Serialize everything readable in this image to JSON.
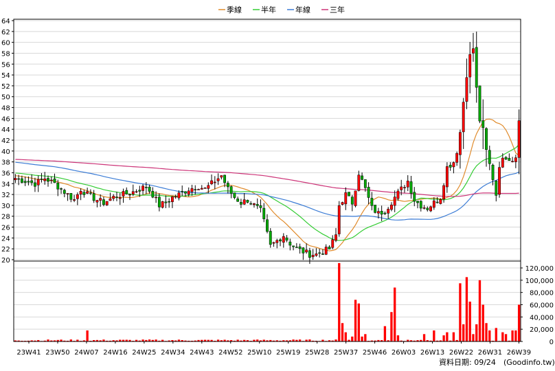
{
  "chart_data": {
    "type": "candlestick",
    "legend": [
      {
        "name": "季線",
        "color": "#e08a2a"
      },
      {
        "name": "半年",
        "color": "#33cc33"
      },
      {
        "name": "年線",
        "color": "#3a7bd5"
      },
      {
        "name": "三年",
        "color": "#cc3377"
      }
    ],
    "colors": {
      "up": "#ff0000",
      "down": "#00aa00",
      "grid": "#d8d8d8",
      "frame": "#000000"
    },
    "price_axis": {
      "min": 20,
      "max": 64,
      "step": 2,
      "ticks": [
        "20",
        "22",
        "24",
        "26",
        "28",
        "30",
        "32",
        "34",
        "36",
        "38",
        "40",
        "42",
        "44",
        "46",
        "48",
        "50",
        "52",
        "54",
        "56",
        "58",
        "60",
        "62",
        "64"
      ]
    },
    "volume_axis": {
      "min": 0,
      "max": 120000,
      "ticks": [
        "0",
        "20,000",
        "40,000",
        "60,000",
        "80,000",
        "100,000",
        "120,000"
      ]
    },
    "x_labels": [
      "23W41",
      "23W50",
      "24W07",
      "24W16",
      "24W25",
      "24W34",
      "24W43",
      "24W52",
      "25W10",
      "25W19",
      "25W28",
      "25W37",
      "25W46",
      "26W03",
      "26W13",
      "26W22",
      "26W31",
      "26W39"
    ],
    "weeks": 155,
    "date_note": "資料日期: 09/24",
    "source_note": "(Goodinfo.tw)",
    "anchors": [
      [
        0,
        35.0
      ],
      [
        3,
        34.5
      ],
      [
        6,
        34.0
      ],
      [
        9,
        35.0
      ],
      [
        12,
        34.0
      ],
      [
        15,
        32.5
      ],
      [
        18,
        31.0
      ],
      [
        20,
        33.0
      ],
      [
        22,
        32.0
      ],
      [
        25,
        31.0
      ],
      [
        27,
        30.5
      ],
      [
        30,
        31.5
      ],
      [
        33,
        32.0
      ],
      [
        36,
        32.5
      ],
      [
        38,
        33.0
      ],
      [
        40,
        33.5
      ],
      [
        42,
        32.0
      ],
      [
        44,
        30.0
      ],
      [
        46,
        30.5
      ],
      [
        48,
        31.5
      ],
      [
        50,
        32.0
      ],
      [
        53,
        33.0
      ],
      [
        56,
        33.5
      ],
      [
        58,
        33.0
      ],
      [
        60,
        34.0
      ],
      [
        63,
        35.5
      ],
      [
        65,
        33.0
      ],
      [
        67,
        31.5
      ],
      [
        69,
        30.5
      ],
      [
        71,
        31.0
      ],
      [
        73,
        30.0
      ],
      [
        75,
        29.0
      ],
      [
        76,
        27.0
      ],
      [
        78,
        22.5
      ],
      [
        80,
        23.5
      ],
      [
        82,
        24.5
      ],
      [
        84,
        23.0
      ],
      [
        86,
        22.0
      ],
      [
        88,
        21.5
      ],
      [
        90,
        21.0
      ],
      [
        92,
        21.0
      ],
      [
        94,
        21.5
      ],
      [
        96,
        22.0
      ],
      [
        98,
        24.5
      ],
      [
        99,
        30.0
      ],
      [
        101,
        32.0
      ],
      [
        103,
        30.5
      ],
      [
        105,
        36.0
      ],
      [
        107,
        33.0
      ],
      [
        109,
        29.5
      ],
      [
        111,
        28.5
      ],
      [
        113,
        29.0
      ],
      [
        116,
        31.5
      ],
      [
        118,
        33.0
      ],
      [
        120,
        34.5
      ],
      [
        122,
        31.0
      ],
      [
        124,
        30.0
      ],
      [
        126,
        29.5
      ],
      [
        128,
        30.5
      ],
      [
        130,
        31.5
      ],
      [
        132,
        37.0
      ],
      [
        134,
        38.0
      ],
      [
        136,
        43.5
      ],
      [
        138,
        55.0
      ],
      [
        140,
        59.0
      ],
      [
        141,
        51.0
      ],
      [
        142,
        46.0
      ],
      [
        144,
        40.0
      ],
      [
        146,
        35.0
      ],
      [
        147,
        32.0
      ],
      [
        148,
        37.5
      ],
      [
        150,
        39.0
      ],
      [
        152,
        38.5
      ],
      [
        153,
        39.0
      ],
      [
        154,
        47.0
      ]
    ],
    "volume_spikes": [
      [
        22,
        18000
      ],
      [
        99,
        128000
      ],
      [
        100,
        30000
      ],
      [
        101,
        15000
      ],
      [
        103,
        8000
      ],
      [
        104,
        68000
      ],
      [
        105,
        62000
      ],
      [
        106,
        8000
      ],
      [
        107,
        12000
      ],
      [
        113,
        25000
      ],
      [
        115,
        48000
      ],
      [
        116,
        88000
      ],
      [
        117,
        10000
      ],
      [
        125,
        12000
      ],
      [
        128,
        18000
      ],
      [
        131,
        10000
      ],
      [
        132,
        15000
      ],
      [
        134,
        15000
      ],
      [
        136,
        95000
      ],
      [
        137,
        28000
      ],
      [
        138,
        105000
      ],
      [
        139,
        65000
      ],
      [
        140,
        12000
      ],
      [
        141,
        28000
      ],
      [
        142,
        100000
      ],
      [
        143,
        60000
      ],
      [
        144,
        30000
      ],
      [
        145,
        18000
      ],
      [
        147,
        22000
      ],
      [
        149,
        15000
      ],
      [
        150,
        12000
      ],
      [
        152,
        18000
      ],
      [
        153,
        18000
      ],
      [
        154,
        60000
      ]
    ]
  }
}
